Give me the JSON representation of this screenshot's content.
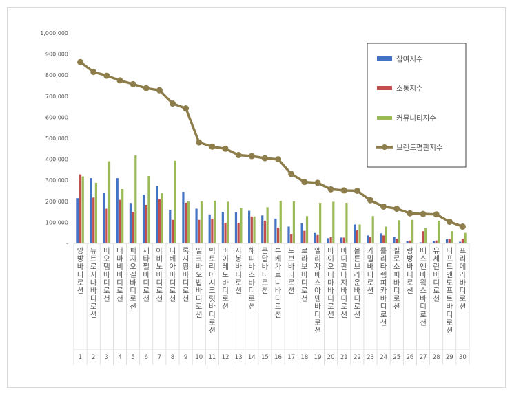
{
  "chart_data": {
    "type": "bar",
    "title": "",
    "xlabel": "",
    "ylabel": "",
    "ylim": [
      0,
      1000000
    ],
    "yticks": [
      0,
      100000,
      200000,
      300000,
      400000,
      500000,
      600000,
      700000,
      800000,
      900000,
      1000000
    ],
    "ytick_labels": [
      "-",
      "100,000",
      "200,000",
      "300,000",
      "400,000",
      "500,000",
      "600,000",
      "700,000",
      "800,000",
      "900,000",
      "1,000,000"
    ],
    "grid": false,
    "legend_position": "top-right",
    "categories": [
      "앙방바디로션",
      "뉴트로지나바디로션",
      "비오템바디로션",
      "더마비바디로션",
      "피지오겔바디로션",
      "세타필바디로션",
      "아비노바디로션",
      "니베아바디로션",
      "록시땅바디로션",
      "밀크바오밥바디로션",
      "빅토리아시크릿바디로션",
      "바이레도바디로션",
      "사봉바디로션",
      "해피바스바디로션",
      "쿤달바디로션",
      "부케가르니바디로션",
      "도브바디로션",
      "르라보바디로션",
      "엘리자베스아덴바디로션",
      "바이오더마바디로션",
      "바디판타지바디로션",
      "몰튼브라운바디로션",
      "카밀바디로션",
      "롤리타렘피카바디로션",
      "필로소피바디로션",
      "랑방바디로션",
      "베스앤바웍스바디로션",
      "유세린바디로션",
      "더프트앤도프트바디로션",
      "프리메라바디로션"
    ],
    "rank_labels": [
      "1",
      "2",
      "3",
      "4",
      "5",
      "6",
      "7",
      "8",
      "9",
      "10",
      "11",
      "12",
      "13",
      "14",
      "15",
      "16",
      "17",
      "18",
      "19",
      "20",
      "21",
      "22",
      "23",
      "24",
      "25",
      "26",
      "27",
      "28",
      "29",
      "30"
    ],
    "series": [
      {
        "name": "참여지수",
        "type": "bar",
        "color": "#4472c4",
        "values": [
          215000,
          310000,
          242000,
          310000,
          192000,
          232000,
          273000,
          160000,
          245000,
          165000,
          138000,
          150000,
          148000,
          155000,
          133000,
          118000,
          80000,
          95000,
          50000,
          25000,
          28000,
          90000,
          38000,
          48000,
          32000,
          10000,
          5000,
          12000,
          20000,
          8000
        ]
      },
      {
        "name": "소통지수",
        "type": "bar",
        "color": "#c0504d",
        "values": [
          328000,
          218000,
          165000,
          207000,
          150000,
          183000,
          210000,
          112000,
          193000,
          112000,
          118000,
          98000,
          98000,
          128000,
          108000,
          75000,
          45000,
          60000,
          40000,
          30000,
          28000,
          62000,
          32000,
          38000,
          22000,
          14000,
          58000,
          14000,
          22000,
          22000
        ]
      },
      {
        "name": "커뮤니티지수",
        "type": "bar",
        "color": "#9bbb59",
        "values": [
          318000,
          288000,
          390000,
          258000,
          418000,
          320000,
          240000,
          393000,
          200000,
          200000,
          203000,
          198000,
          168000,
          128000,
          172000,
          202000,
          200000,
          130000,
          193000,
          198000,
          193000,
          90000,
          130000,
          80000,
          110000,
          112000,
          72000,
          108000,
          58000,
          50000
        ]
      },
      {
        "name": "브랜드평판지수",
        "type": "line",
        "color": "#8c7d4a",
        "values": [
          862000,
          815000,
          797000,
          775000,
          757000,
          738000,
          728000,
          665000,
          642000,
          480000,
          460000,
          450000,
          420000,
          415000,
          405000,
          400000,
          330000,
          292000,
          288000,
          257000,
          252000,
          250000,
          205000,
          175000,
          165000,
          143000,
          140000,
          138000,
          103000,
          80000
        ]
      }
    ]
  }
}
